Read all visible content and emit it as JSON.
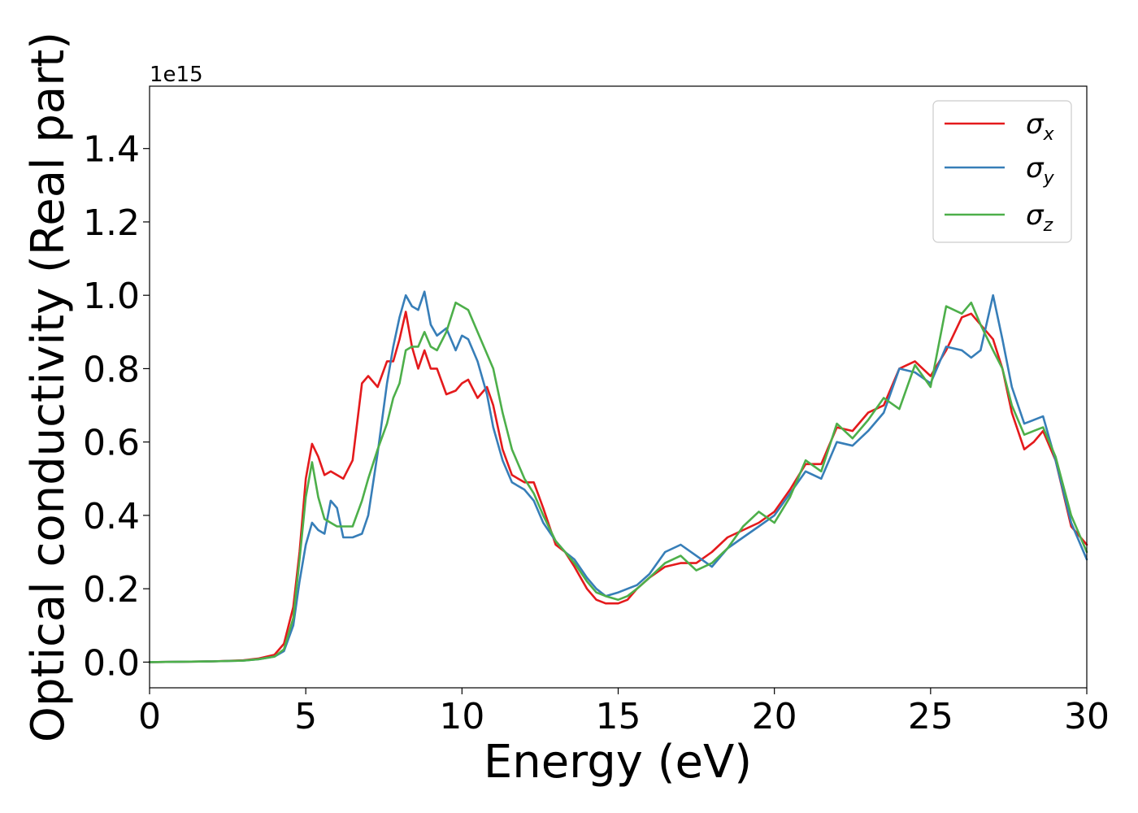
{
  "chart_data": {
    "type": "line",
    "title": "",
    "xlabel": "Energy (eV)",
    "ylabel": "Optical conductivity (Real part)",
    "y_offset_label": "1e15",
    "xlim": [
      0,
      30
    ],
    "ylim": [
      -0.07,
      1.57
    ],
    "xticks": [
      0,
      5,
      10,
      15,
      20,
      25,
      30
    ],
    "xtick_labels": [
      "0",
      "5",
      "10",
      "15",
      "20",
      "25",
      "30"
    ],
    "yticks": [
      0.0,
      0.2,
      0.4,
      0.6,
      0.8,
      1.0,
      1.2,
      1.4
    ],
    "ytick_labels": [
      "0.0",
      "0.2",
      "0.4",
      "0.6",
      "0.8",
      "1.0",
      "1.2",
      "1.4"
    ],
    "grid": false,
    "legend": {
      "position": "top-right"
    },
    "series": [
      {
        "name": "σx",
        "symbol": "σ",
        "subscript": "x",
        "color": "#e41a1c",
        "x": [
          0,
          2,
          3,
          3.5,
          4,
          4.3,
          4.6,
          4.8,
          5,
          5.2,
          5.4,
          5.6,
          5.8,
          6,
          6.2,
          6.5,
          6.8,
          7,
          7.3,
          7.6,
          7.8,
          8,
          8.2,
          8.4,
          8.6,
          8.8,
          9,
          9.2,
          9.5,
          9.8,
          10,
          10.2,
          10.5,
          10.8,
          11,
          11.3,
          11.6,
          12,
          12.3,
          12.6,
          13,
          13.3,
          13.6,
          14,
          14.3,
          14.6,
          15,
          15.3,
          15.6,
          16,
          16.5,
          17,
          17.5,
          18,
          18.5,
          19,
          19.5,
          20,
          20.5,
          21,
          21.5,
          22,
          22.5,
          23,
          23.5,
          24,
          24.5,
          25,
          25.5,
          26,
          26.3,
          26.6,
          27,
          27.3,
          27.6,
          28,
          28.3,
          28.6,
          29,
          29.5,
          30
        ],
        "y": [
          0,
          0.002,
          0.005,
          0.01,
          0.02,
          0.05,
          0.15,
          0.3,
          0.5,
          0.595,
          0.56,
          0.51,
          0.52,
          0.51,
          0.5,
          0.55,
          0.76,
          0.78,
          0.75,
          0.82,
          0.82,
          0.88,
          0.955,
          0.86,
          0.8,
          0.85,
          0.8,
          0.8,
          0.73,
          0.74,
          0.76,
          0.77,
          0.72,
          0.75,
          0.7,
          0.58,
          0.51,
          0.49,
          0.49,
          0.42,
          0.32,
          0.3,
          0.26,
          0.2,
          0.17,
          0.16,
          0.16,
          0.17,
          0.2,
          0.23,
          0.26,
          0.27,
          0.27,
          0.3,
          0.34,
          0.36,
          0.38,
          0.41,
          0.47,
          0.54,
          0.54,
          0.64,
          0.63,
          0.68,
          0.7,
          0.8,
          0.82,
          0.78,
          0.85,
          0.94,
          0.95,
          0.92,
          0.88,
          0.8,
          0.68,
          0.58,
          0.6,
          0.63,
          0.55,
          0.37,
          0.32
        ]
      },
      {
        "name": "σy",
        "symbol": "σ",
        "subscript": "y",
        "color": "#377eb8",
        "x": [
          0,
          2,
          3,
          3.5,
          4,
          4.3,
          4.6,
          4.8,
          5,
          5.2,
          5.4,
          5.6,
          5.8,
          6,
          6.2,
          6.5,
          6.8,
          7,
          7.3,
          7.6,
          7.8,
          8,
          8.2,
          8.4,
          8.6,
          8.8,
          9,
          9.2,
          9.5,
          9.8,
          10,
          10.2,
          10.5,
          10.8,
          11,
          11.3,
          11.6,
          12,
          12.3,
          12.6,
          13,
          13.3,
          13.6,
          14,
          14.3,
          14.6,
          15,
          15.3,
          15.6,
          16,
          16.5,
          17,
          17.5,
          18,
          18.5,
          19,
          19.5,
          20,
          20.5,
          21,
          21.5,
          22,
          22.5,
          23,
          23.5,
          24,
          24.5,
          25,
          25.5,
          26,
          26.3,
          26.6,
          27,
          27.3,
          27.6,
          28,
          28.3,
          28.6,
          29,
          29.5,
          30
        ],
        "y": [
          0,
          0.002,
          0.004,
          0.008,
          0.015,
          0.03,
          0.1,
          0.22,
          0.32,
          0.38,
          0.36,
          0.35,
          0.44,
          0.42,
          0.34,
          0.34,
          0.35,
          0.4,
          0.57,
          0.76,
          0.86,
          0.94,
          1.0,
          0.97,
          0.96,
          1.01,
          0.92,
          0.89,
          0.91,
          0.85,
          0.89,
          0.88,
          0.82,
          0.73,
          0.64,
          0.55,
          0.49,
          0.47,
          0.44,
          0.38,
          0.33,
          0.3,
          0.28,
          0.23,
          0.2,
          0.18,
          0.19,
          0.2,
          0.21,
          0.24,
          0.3,
          0.32,
          0.29,
          0.26,
          0.31,
          0.34,
          0.37,
          0.4,
          0.46,
          0.52,
          0.5,
          0.6,
          0.59,
          0.63,
          0.68,
          0.8,
          0.79,
          0.76,
          0.86,
          0.85,
          0.83,
          0.85,
          1.0,
          0.88,
          0.75,
          0.65,
          0.66,
          0.67,
          0.55,
          0.38,
          0.28
        ]
      },
      {
        "name": "σz",
        "symbol": "σ",
        "subscript": "z",
        "color": "#4daf4a",
        "x": [
          0,
          2,
          3,
          3.5,
          4,
          4.3,
          4.6,
          4.8,
          5,
          5.2,
          5.4,
          5.6,
          5.8,
          6,
          6.2,
          6.5,
          6.8,
          7,
          7.3,
          7.6,
          7.8,
          8,
          8.2,
          8.4,
          8.6,
          8.8,
          9,
          9.2,
          9.5,
          9.8,
          10,
          10.2,
          10.5,
          10.8,
          11,
          11.3,
          11.6,
          12,
          12.3,
          12.6,
          13,
          13.3,
          13.6,
          14,
          14.3,
          14.6,
          15,
          15.3,
          15.6,
          16,
          16.5,
          17,
          17.5,
          18,
          18.5,
          19,
          19.5,
          20,
          20.5,
          21,
          21.5,
          22,
          22.5,
          23,
          23.5,
          24,
          24.5,
          25,
          25.5,
          26,
          26.3,
          26.6,
          27,
          27.3,
          27.6,
          28,
          28.3,
          28.6,
          29,
          29.5,
          30
        ],
        "y": [
          0,
          0.002,
          0.004,
          0.008,
          0.015,
          0.035,
          0.12,
          0.28,
          0.45,
          0.545,
          0.45,
          0.39,
          0.38,
          0.37,
          0.37,
          0.37,
          0.44,
          0.5,
          0.58,
          0.65,
          0.72,
          0.76,
          0.85,
          0.86,
          0.86,
          0.9,
          0.86,
          0.85,
          0.9,
          0.98,
          0.97,
          0.96,
          0.9,
          0.84,
          0.8,
          0.68,
          0.58,
          0.5,
          0.46,
          0.4,
          0.33,
          0.3,
          0.27,
          0.22,
          0.19,
          0.18,
          0.17,
          0.18,
          0.2,
          0.23,
          0.27,
          0.29,
          0.25,
          0.27,
          0.31,
          0.37,
          0.41,
          0.38,
          0.45,
          0.55,
          0.52,
          0.65,
          0.61,
          0.66,
          0.72,
          0.69,
          0.81,
          0.75,
          0.97,
          0.95,
          0.98,
          0.92,
          0.85,
          0.8,
          0.7,
          0.62,
          0.63,
          0.64,
          0.56,
          0.4,
          0.3
        ]
      }
    ]
  }
}
